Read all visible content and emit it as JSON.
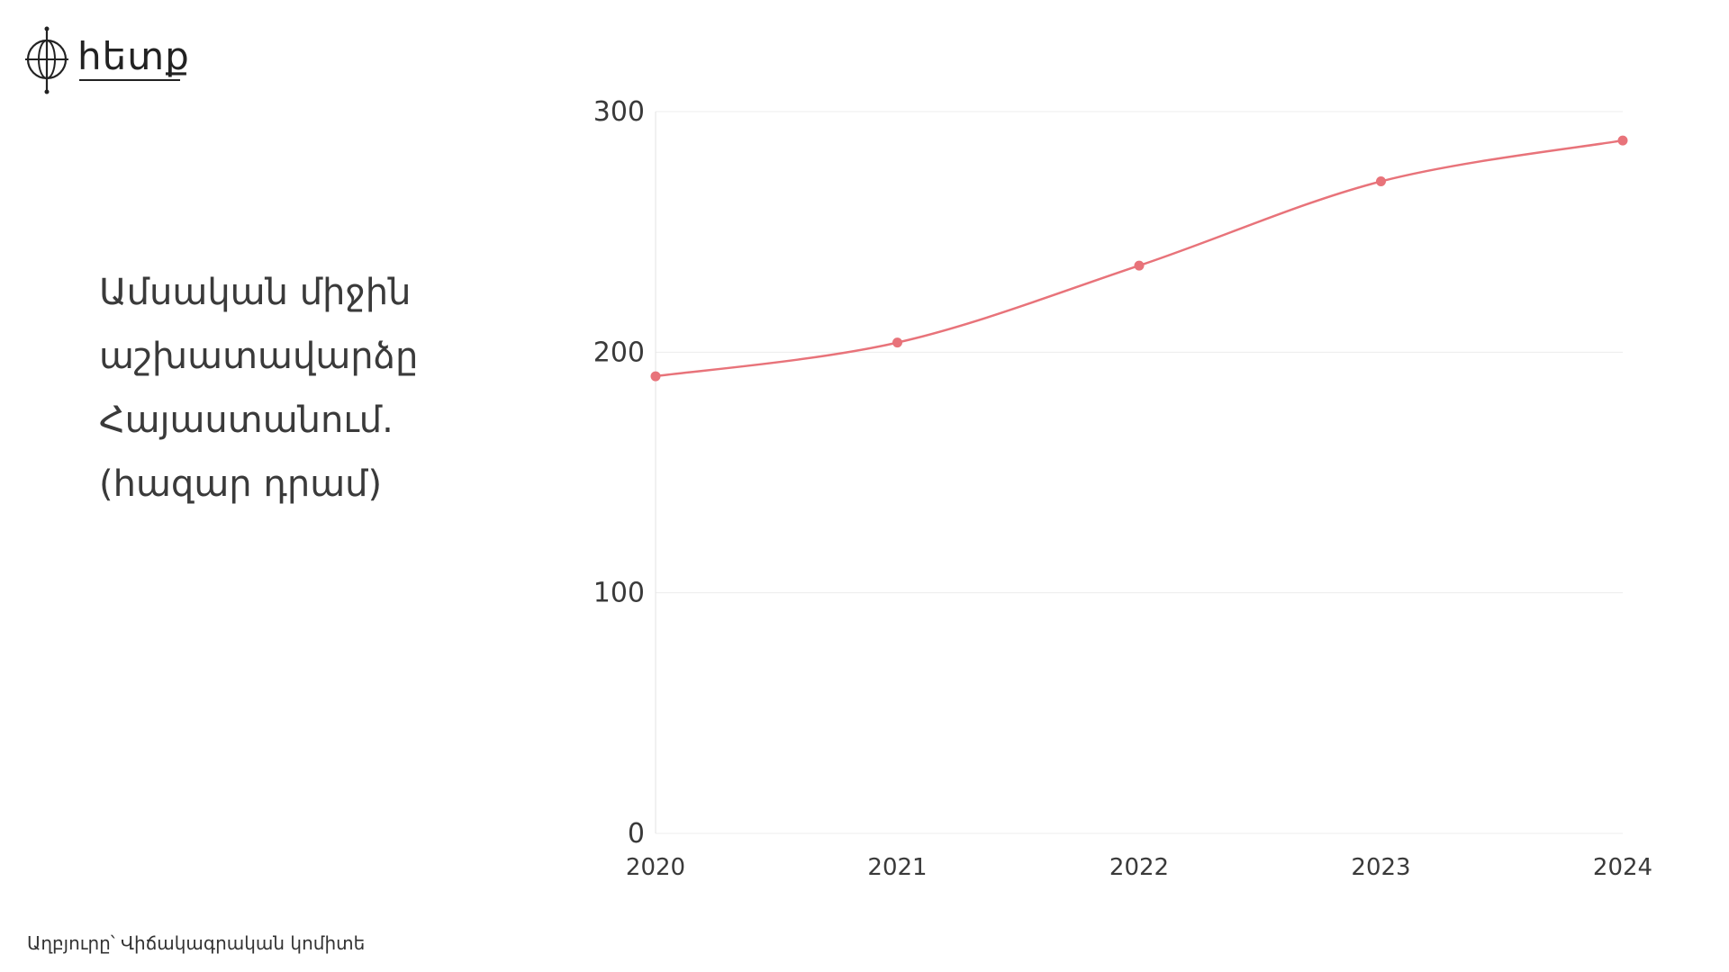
{
  "logo": {
    "wordmark": "հետք",
    "icon": "globe-crosshair-icon"
  },
  "title_lines": [
    "Ամսական միջին",
    "աշխատավարձը",
    "Հայաստանում.",
    "(հազար դրամ)"
  ],
  "source": "Աղբյուրը՝ Վիճակագրական կոմիտե",
  "colors": {
    "line": "#e8737a",
    "grid": "#ececec",
    "axis": "#e3e3e3",
    "text": "#3a3a3a"
  },
  "chart_data": {
    "type": "line",
    "title": "Ամսական միջին աշխատավարձը Հայաստանում. (հազար դրամ)",
    "x": [
      "2020",
      "2021",
      "2022",
      "2023",
      "2024"
    ],
    "series": [
      {
        "values": [
          190,
          204,
          236,
          271,
          288
        ]
      }
    ],
    "yticks": [
      "0",
      "100",
      "200",
      "300"
    ],
    "ylim": [
      0,
      300
    ],
    "grid": true,
    "smooth": true,
    "markers": true
  }
}
